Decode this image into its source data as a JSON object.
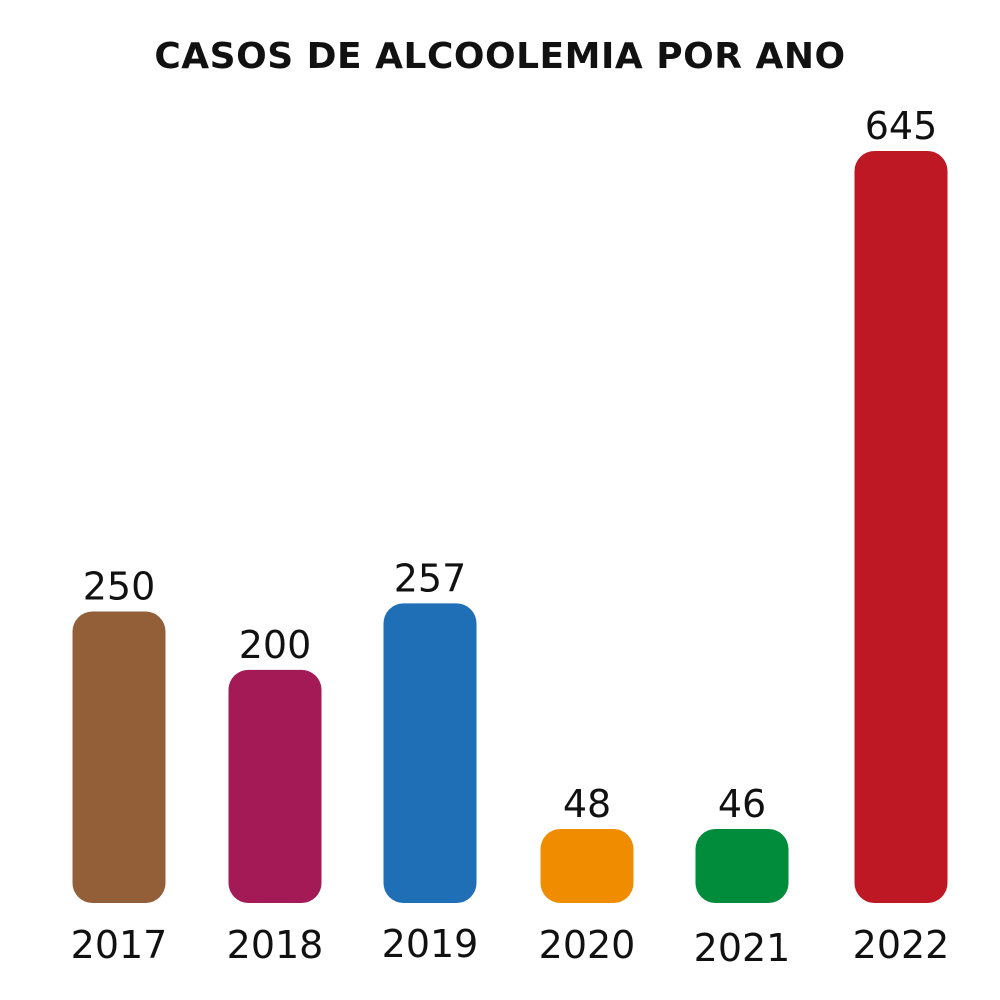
{
  "chart_data": {
    "type": "bar",
    "title": "CASOS DE ALCOOLEMIA POR ANO",
    "categories": [
      "2017",
      "2018",
      "2019",
      "2020",
      "2021",
      "2022"
    ],
    "values": [
      250,
      200,
      257,
      48,
      46,
      645
    ],
    "value_labels": [
      "250",
      "200",
      "257",
      "48",
      "46",
      "645"
    ],
    "colors": [
      "#935f38",
      "#a31a56",
      "#1f6fb7",
      "#f08c00",
      "#008c3a",
      "#be1825"
    ],
    "xlabel": "",
    "ylabel": "",
    "ylim": [
      0,
      645
    ],
    "grid": false,
    "legend": "none"
  }
}
